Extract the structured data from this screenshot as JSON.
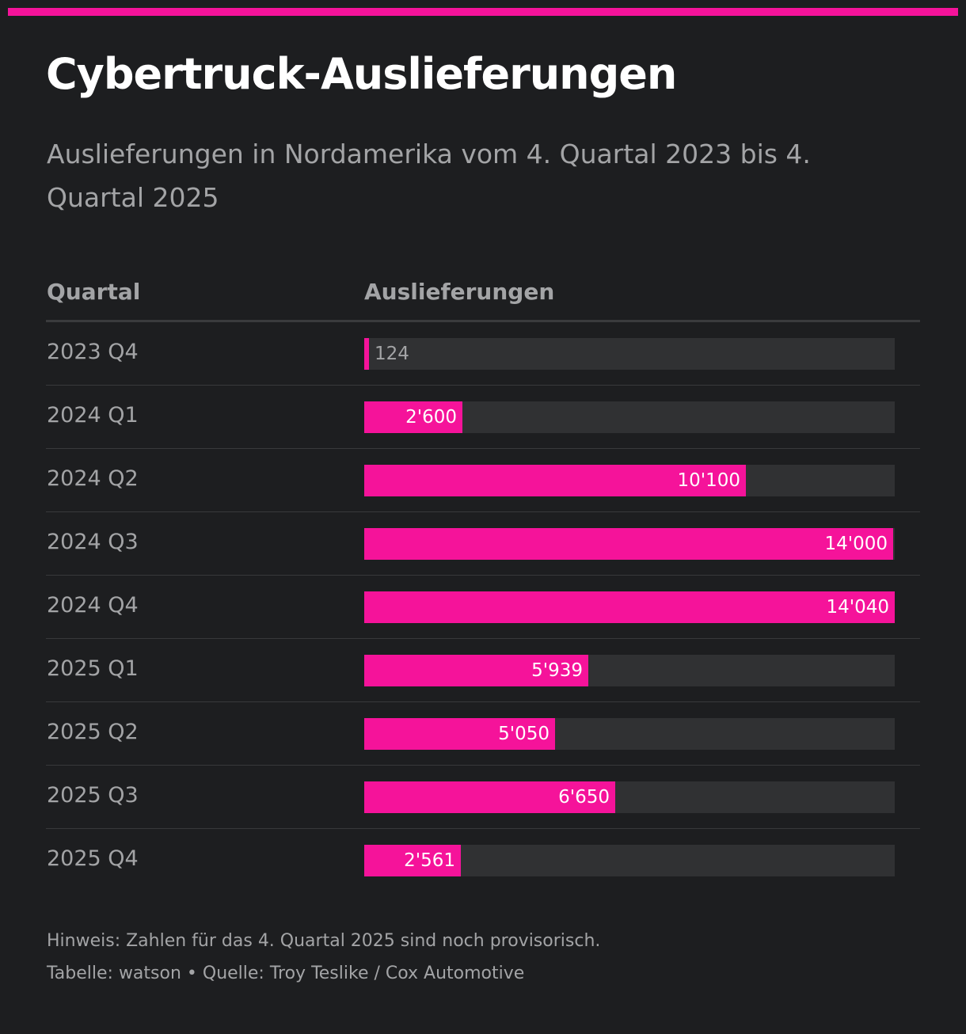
{
  "title": "Cybertruck-Auslieferungen",
  "subtitle": "Auslieferungen in Nordamerika vom 4. Quartal 2023 bis 4. Quartal 2025",
  "colors": {
    "accent": "#f5139a",
    "background": "#1d1e20",
    "track": "#303133",
    "muted_text": "#a3a4a6"
  },
  "table": {
    "col_quartal": "Quartal",
    "col_auslieferungen": "Auslieferungen"
  },
  "chart_data": {
    "type": "bar",
    "orientation": "horizontal",
    "title": "Cybertruck-Auslieferungen",
    "xlabel": "Auslieferungen",
    "ylabel": "Quartal",
    "xlim": [
      0,
      14040
    ],
    "categories": [
      "2023 Q4",
      "2024 Q1",
      "2024 Q2",
      "2024 Q3",
      "2024 Q4",
      "2025 Q1",
      "2025 Q2",
      "2025 Q3",
      "2025 Q4"
    ],
    "values": [
      124,
      2600,
      10100,
      14000,
      14040,
      5939,
      5050,
      6650,
      2561
    ],
    "value_labels": [
      "124",
      "2'600",
      "10'100",
      "14'000",
      "14'040",
      "5'939",
      "5'050",
      "6'650",
      "2'561"
    ]
  },
  "footer": {
    "note": "Hinweis: Zahlen für das 4. Quartal 2025 sind noch provisorisch.",
    "source": "Tabelle: watson • Quelle: Troy Teslike / Cox Automotive"
  }
}
